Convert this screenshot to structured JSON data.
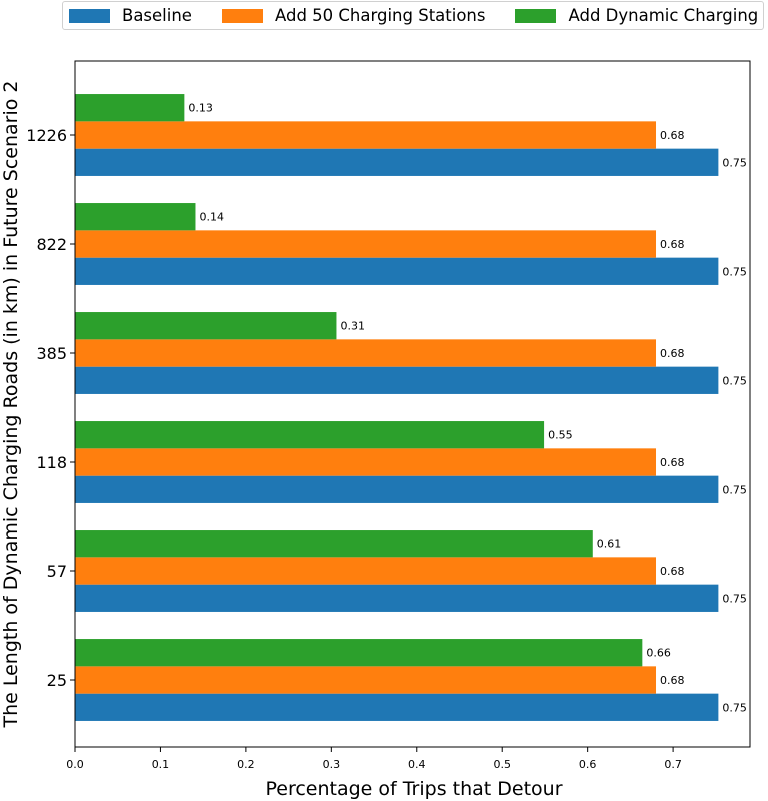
{
  "chart_data": {
    "type": "bar",
    "orientation": "horizontal",
    "title": "",
    "xlabel": "Percentage of Trips that Detour",
    "ylabel": "The Length of Dynamic Charging Roads (in km) in Future Scenario 2",
    "categories": [
      "25",
      "57",
      "118",
      "385",
      "822",
      "1226"
    ],
    "series": [
      {
        "name": "Baseline",
        "color": "#1f77b4",
        "values": [
          0.753,
          0.753,
          0.753,
          0.753,
          0.753,
          0.753
        ],
        "labels": [
          "0.75",
          "0.75",
          "0.75",
          "0.75",
          "0.75",
          "0.75"
        ]
      },
      {
        "name": "Add 50 Charging Stations",
        "color": "#ff7f0e",
        "values": [
          0.68,
          0.68,
          0.68,
          0.68,
          0.68,
          0.68
        ],
        "labels": [
          "0.68",
          "0.68",
          "0.68",
          "0.68",
          "0.68",
          "0.68"
        ]
      },
      {
        "name": "Add Dynamic Charging",
        "color": "#2ca02c",
        "values": [
          0.664,
          0.606,
          0.549,
          0.306,
          0.141,
          0.128
        ],
        "labels": [
          "0.66",
          "0.61",
          "0.55",
          "0.31",
          "0.14",
          "0.13"
        ]
      }
    ],
    "xlim": [
      0.0,
      0.79
    ],
    "xticks": [
      "0.0",
      "0.1",
      "0.2",
      "0.3",
      "0.4",
      "0.5",
      "0.6",
      "0.7"
    ],
    "grid": false,
    "legend_position": "top"
  }
}
